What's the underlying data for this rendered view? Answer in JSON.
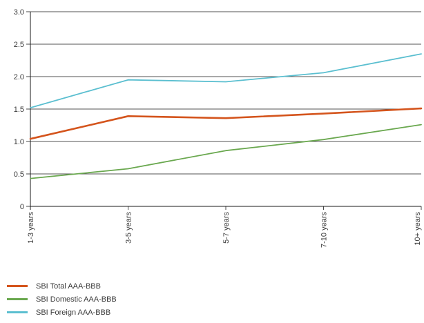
{
  "chart_data": {
    "type": "line",
    "categories": [
      "1-3 years",
      "3-5 years",
      "5-7 years",
      "7-10 years",
      "10+ years"
    ],
    "ylim": [
      0,
      3.0
    ],
    "y_ticks": [
      "0",
      "0.5",
      "1.0",
      "1.5",
      "2.0",
      "2.5",
      "3.0"
    ],
    "grid": true,
    "legend_position": "bottom-left",
    "series": [
      {
        "name": "SBI Total AAA-BBB",
        "color": "#d4541c",
        "values": [
          1.04,
          1.39,
          1.36,
          1.43,
          1.51
        ]
      },
      {
        "name": "SBI Domestic AAA-BBB",
        "color": "#6aa84f",
        "values": [
          0.43,
          0.58,
          0.86,
          1.03,
          1.26
        ]
      },
      {
        "name": "SBI Foreign AAA-BBB",
        "color": "#5bbfd0",
        "values": [
          1.52,
          1.95,
          1.92,
          2.06,
          2.35
        ]
      }
    ]
  }
}
